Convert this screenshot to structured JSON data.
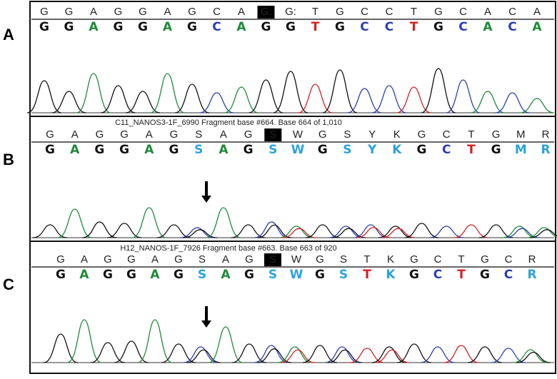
{
  "panels": [
    {
      "label": "A",
      "header": null,
      "highlight": 9,
      "top_row": [
        "G",
        "G",
        "A",
        "G",
        "G",
        "A",
        "G",
        "C",
        "A",
        "G:",
        "G:",
        "T",
        "G",
        "C",
        "C",
        "T",
        "G",
        "C",
        "A",
        "C",
        "A"
      ],
      "base_calls": [
        "G",
        "G",
        "A",
        "G",
        "G",
        "A",
        "G",
        "C",
        "A",
        "G",
        "G",
        "T",
        "G",
        "C",
        "C",
        "T",
        "G",
        "C",
        "A",
        "C",
        "A"
      ]
    },
    {
      "label": "B",
      "header": "C11_NANOS3-1F_6990 Fragment base #664. Base 664 of 1,010",
      "highlight": 9,
      "top_row": [
        "G",
        "A",
        "G",
        "G",
        "A",
        "G",
        "S",
        "A",
        "G",
        "S",
        "W",
        "G",
        "S",
        "Y",
        "K",
        "G",
        "C",
        "T",
        "G",
        "M",
        "R"
      ],
      "base_calls": [
        "G",
        "A",
        "G",
        "G",
        "A",
        "G",
        "S",
        "A",
        "G",
        "S",
        "W",
        "G",
        "S",
        "Y",
        "K",
        "G",
        "C",
        "T",
        "G",
        "M",
        "R"
      ]
    },
    {
      "label": "C",
      "header": "H12_NANOS-1F_7926 Fragment base #663. Base 663 of 920",
      "highlight": 9,
      "top_row": [
        "G",
        "A",
        "G",
        "G",
        "A",
        "G",
        "S",
        "A",
        "G",
        "S",
        "W",
        "G",
        "S",
        "T",
        "K",
        "G",
        "C",
        "T",
        "G",
        "C",
        "R"
      ],
      "base_calls": [
        "G",
        "A",
        "G",
        "G",
        "A",
        "G",
        "S",
        "A",
        "G",
        "S",
        "W",
        "G",
        "S",
        "T",
        "K",
        "G",
        "C",
        "T",
        "G",
        "C",
        "R"
      ]
    }
  ],
  "base_colors": {
    "G": "#111111",
    "A": "#1f8a3a",
    "C": "#2b3fb0",
    "T": "#d42020",
    "S": "#2aa3dc",
    "W": "#2aa3dc",
    "Y": "#2aa3dc",
    "K": "#2aa3dc",
    "M": "#2aa3dc",
    "R": "#2aa3dc"
  }
}
